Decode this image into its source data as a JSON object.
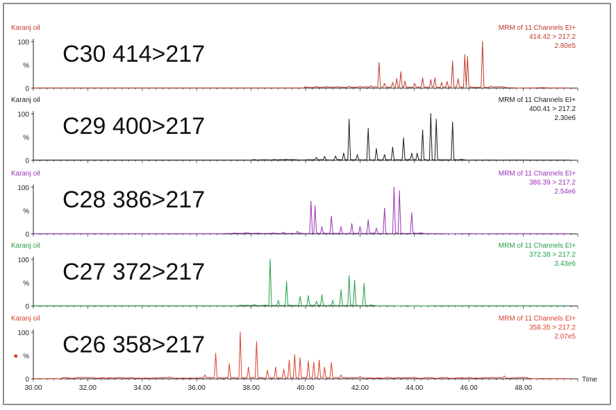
{
  "chart_data": {
    "type": "line",
    "xlim": [
      30.0,
      50.0
    ],
    "x_ticks": [
      "30.00",
      "32.00",
      "34.00",
      "36.00",
      "38.00",
      "40.00",
      "42.00",
      "44.00",
      "46.00",
      "48.00"
    ],
    "x_tick_values": [
      30,
      32,
      34,
      36,
      38,
      40,
      42,
      44,
      46,
      48
    ],
    "xlabel": "Time",
    "y_ticks": [
      "100",
      "%",
      "0"
    ],
    "ylim": [
      0,
      100
    ],
    "panels": [
      {
        "sample": "Karanj oil",
        "big_label": "C30 414>217",
        "channel": "MRM of 11 Channels EI+",
        "transition": "414.42 > 217.2",
        "intensity": "2.80e5",
        "color": "#c0392b",
        "baseline_start": 40.0,
        "baseline_level": 2,
        "peaks": [
          [
            40.0,
            2
          ],
          [
            40.4,
            3
          ],
          [
            40.8,
            3
          ],
          [
            41.2,
            3
          ],
          [
            41.6,
            4
          ],
          [
            42.0,
            4
          ],
          [
            42.4,
            5
          ],
          [
            42.7,
            55
          ],
          [
            42.9,
            10
          ],
          [
            43.2,
            12
          ],
          [
            43.35,
            20
          ],
          [
            43.5,
            35
          ],
          [
            43.65,
            15
          ],
          [
            44.0,
            10
          ],
          [
            44.3,
            22
          ],
          [
            44.6,
            18
          ],
          [
            44.75,
            22
          ],
          [
            45.0,
            12
          ],
          [
            45.2,
            14
          ],
          [
            45.4,
            58
          ],
          [
            45.6,
            20
          ],
          [
            45.85,
            72
          ],
          [
            45.95,
            68
          ],
          [
            46.5,
            100
          ],
          [
            46.8,
            4
          ],
          [
            47.2,
            3
          ]
        ]
      },
      {
        "sample": "Karanj oil",
        "big_label": "C29 400>217",
        "channel": "MRM of 11 Channels EI+",
        "transition": "400.41 > 217.2",
        "intensity": "2.30e6",
        "color": "#1a1a1a",
        "baseline_start": 38.0,
        "baseline_level": 1,
        "peaks": [
          [
            39.3,
            2
          ],
          [
            40.4,
            6
          ],
          [
            40.7,
            8
          ],
          [
            41.1,
            9
          ],
          [
            41.4,
            15
          ],
          [
            41.6,
            88
          ],
          [
            41.9,
            12
          ],
          [
            42.3,
            68
          ],
          [
            42.6,
            25
          ],
          [
            42.9,
            12
          ],
          [
            43.2,
            28
          ],
          [
            43.6,
            48
          ],
          [
            43.9,
            15
          ],
          [
            44.1,
            15
          ],
          [
            44.3,
            65
          ],
          [
            44.6,
            100
          ],
          [
            44.8,
            88
          ],
          [
            45.4,
            82
          ],
          [
            45.7,
            2
          ]
        ]
      },
      {
        "sample": "Karanj oil",
        "big_label": "C28 386>217",
        "channel": "MRM of 11 Channels EI+",
        "transition": "386.39 > 217.2",
        "intensity": "2.54e6",
        "color": "#9b30b8",
        "baseline_start": 37.0,
        "baseline_level": 1,
        "peaks": [
          [
            37.8,
            2
          ],
          [
            39.2,
            3
          ],
          [
            39.7,
            5
          ],
          [
            40.2,
            70
          ],
          [
            40.35,
            60
          ],
          [
            40.6,
            15
          ],
          [
            40.95,
            38
          ],
          [
            41.3,
            15
          ],
          [
            41.7,
            22
          ],
          [
            42.0,
            15
          ],
          [
            42.3,
            30
          ],
          [
            42.6,
            12
          ],
          [
            42.9,
            55
          ],
          [
            43.25,
            100
          ],
          [
            43.45,
            92
          ],
          [
            43.9,
            45
          ],
          [
            44.2,
            2
          ]
        ]
      },
      {
        "sample": "Karanj oil",
        "big_label": "C27 372>217",
        "channel": "MRM of 11 Channels EI+",
        "transition": "372.38 > 217.2",
        "intensity": "3.43e6",
        "color": "#1f9e46",
        "baseline_start": 37.5,
        "baseline_level": 1,
        "peaks": [
          [
            38.1,
            3
          ],
          [
            38.7,
            100
          ],
          [
            39.0,
            12
          ],
          [
            39.3,
            52
          ],
          [
            39.8,
            20
          ],
          [
            40.1,
            22
          ],
          [
            40.4,
            10
          ],
          [
            40.6,
            24
          ],
          [
            41.0,
            12
          ],
          [
            41.3,
            35
          ],
          [
            41.6,
            65
          ],
          [
            41.8,
            55
          ],
          [
            42.15,
            48
          ],
          [
            42.4,
            2
          ]
        ]
      },
      {
        "sample": "Karanj oil",
        "big_label": "C26 358>217",
        "channel": "MRM of 11 Channels EI+",
        "transition": "358.35 > 217.2",
        "intensity": "2.07e5",
        "color": "#d9402c",
        "baseline_start": 31.0,
        "baseline_level": 2,
        "peaks": [
          [
            35.0,
            4
          ],
          [
            36.3,
            8
          ],
          [
            36.7,
            55
          ],
          [
            37.2,
            32
          ],
          [
            37.6,
            100
          ],
          [
            37.9,
            25
          ],
          [
            38.2,
            80
          ],
          [
            38.6,
            18
          ],
          [
            38.9,
            25
          ],
          [
            39.2,
            20
          ],
          [
            39.4,
            40
          ],
          [
            39.6,
            52
          ],
          [
            39.8,
            45
          ],
          [
            40.1,
            38
          ],
          [
            40.3,
            35
          ],
          [
            40.5,
            40
          ],
          [
            40.7,
            25
          ],
          [
            40.95,
            35
          ],
          [
            41.3,
            8
          ],
          [
            42.0,
            5
          ],
          [
            43.0,
            3
          ],
          [
            44.0,
            3
          ],
          [
            45.0,
            3
          ],
          [
            46.0,
            3
          ],
          [
            47.3,
            6
          ],
          [
            48.0,
            3
          ]
        ]
      }
    ]
  },
  "legend_marker": {
    "text": "■",
    "color": "#e8322a"
  }
}
